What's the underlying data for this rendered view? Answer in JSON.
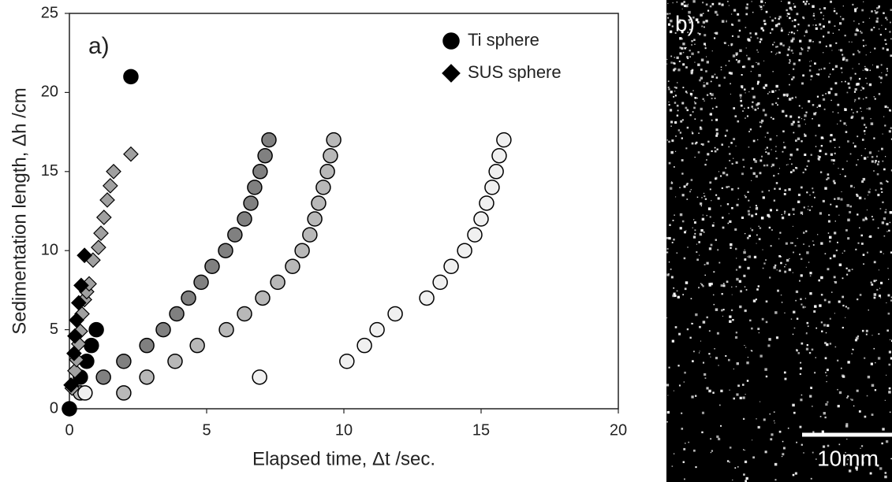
{
  "chart_data": {
    "type": "scatter",
    "annotation": "a)",
    "xlabel": "Elapsed time, Δt /sec.",
    "ylabel": "Sedimentation length, Δh /cm",
    "xlim": [
      0,
      20
    ],
    "ylim": [
      0,
      25
    ],
    "xticks": [
      0,
      5,
      10,
      15,
      20
    ],
    "yticks": [
      0,
      5,
      10,
      15,
      20,
      25
    ],
    "series": [
      {
        "name": "Ti sphere",
        "marker": "circle",
        "color": "#000000",
        "x": [
          0,
          0.4,
          0.63,
          0.8,
          0.98,
          2.24
        ],
        "values": [
          0,
          2,
          3,
          4,
          5,
          21
        ]
      },
      {
        "marker": "circle",
        "color": "#808080",
        "x": [
          1.24,
          1.98,
          2.82,
          3.42,
          3.91,
          4.34,
          4.8,
          5.2,
          5.69,
          6.03,
          6.38,
          6.61,
          6.75,
          6.95,
          7.13,
          7.27
        ],
        "values": [
          2,
          3,
          4,
          5,
          6,
          7,
          8,
          9,
          10,
          11,
          12,
          13,
          14,
          15,
          16,
          17
        ]
      },
      {
        "marker": "circle",
        "color": "#b8b8b8",
        "x": [
          0.4,
          1.98,
          2.82,
          3.85,
          4.66,
          5.72,
          6.38,
          7.04,
          7.59,
          8.13,
          8.48,
          8.76,
          8.94,
          9.08,
          9.25,
          9.4,
          9.51,
          9.63
        ],
        "values": [
          1,
          1,
          2,
          3,
          4,
          5,
          6,
          7,
          8,
          9,
          10,
          11,
          12,
          13,
          14,
          15,
          16,
          17
        ]
      },
      {
        "marker": "circle",
        "color": "#f0f0f0",
        "x": [
          0.57,
          6.93,
          10.11,
          10.75,
          11.21,
          11.87,
          13.02,
          13.51,
          13.91,
          14.4,
          14.77,
          15.0,
          15.2,
          15.4,
          15.55,
          15.66,
          15.83
        ],
        "values": [
          1,
          2,
          3,
          4,
          5,
          6,
          7,
          8,
          9,
          10,
          11,
          12,
          13,
          14,
          15,
          16,
          17
        ]
      },
      {
        "marker": "diamond",
        "color": "#a0a0a0",
        "x": [
          0,
          0.1,
          0.2,
          0.26,
          0.34,
          0.4,
          0.46,
          0.55,
          0.63,
          0.72,
          0.86,
          1.06,
          1.15,
          1.26,
          1.38,
          1.49,
          1.61,
          2.24
        ],
        "values": [
          0,
          1.3,
          2.4,
          3.1,
          4.1,
          4.9,
          6,
          6.9,
          7.4,
          7.9,
          9.4,
          10.2,
          11.1,
          12.1,
          13.2,
          14.1,
          15,
          16.1
        ]
      },
      {
        "name": "SUS sphere",
        "marker": "diamond",
        "color": "#000000",
        "x": [
          0,
          0.06,
          0.17,
          0.2,
          0.26,
          0.34,
          0.43,
          0.55
        ],
        "values": [
          0,
          1.5,
          3.5,
          4.6,
          5.6,
          6.7,
          7.8,
          9.7
        ]
      }
    ]
  },
  "image_panel": {
    "label": "b)",
    "scale_bar": "10mm"
  }
}
